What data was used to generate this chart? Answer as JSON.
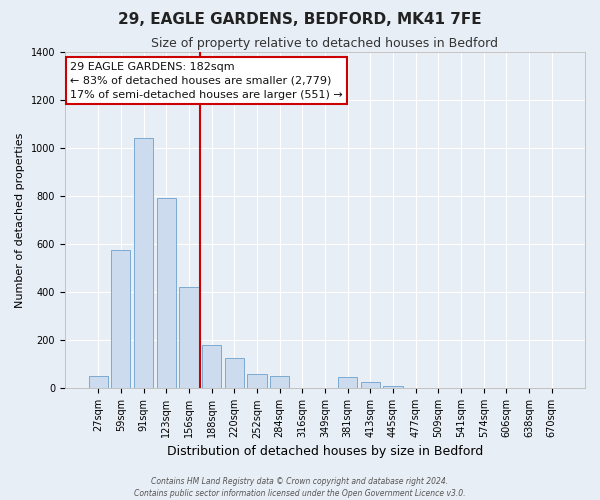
{
  "title": "29, EAGLE GARDENS, BEDFORD, MK41 7FE",
  "subtitle": "Size of property relative to detached houses in Bedford",
  "xlabel": "Distribution of detached houses by size in Bedford",
  "ylabel": "Number of detached properties",
  "bar_labels": [
    "27sqm",
    "59sqm",
    "91sqm",
    "123sqm",
    "156sqm",
    "188sqm",
    "220sqm",
    "252sqm",
    "284sqm",
    "316sqm",
    "349sqm",
    "381sqm",
    "413sqm",
    "445sqm",
    "477sqm",
    "509sqm",
    "541sqm",
    "574sqm",
    "606sqm",
    "638sqm",
    "670sqm"
  ],
  "bar_values": [
    50,
    575,
    1040,
    790,
    420,
    180,
    125,
    60,
    50,
    0,
    0,
    47,
    25,
    10,
    0,
    0,
    0,
    0,
    0,
    0,
    0
  ],
  "bar_color": "#ccdcee",
  "bar_edge_color": "#7baad0",
  "vline_color": "#cc0000",
  "vline_x_index": 5,
  "ylim": [
    0,
    1400
  ],
  "yticks": [
    0,
    200,
    400,
    600,
    800,
    1000,
    1200,
    1400
  ],
  "annotation_title": "29 EAGLE GARDENS: 182sqm",
  "annotation_line1": "← 83% of detached houses are smaller (2,779)",
  "annotation_line2": "17% of semi-detached houses are larger (551) →",
  "annotation_box_facecolor": "#ffffff",
  "annotation_box_edgecolor": "#cc0000",
  "footer1": "Contains HM Land Registry data © Crown copyright and database right 2024.",
  "footer2": "Contains public sector information licensed under the Open Government Licence v3.0.",
  "bg_color": "#e8eef5",
  "title_fontsize": 11,
  "subtitle_fontsize": 9,
  "xlabel_fontsize": 9,
  "ylabel_fontsize": 8,
  "tick_fontsize": 7,
  "annot_fontsize": 8
}
